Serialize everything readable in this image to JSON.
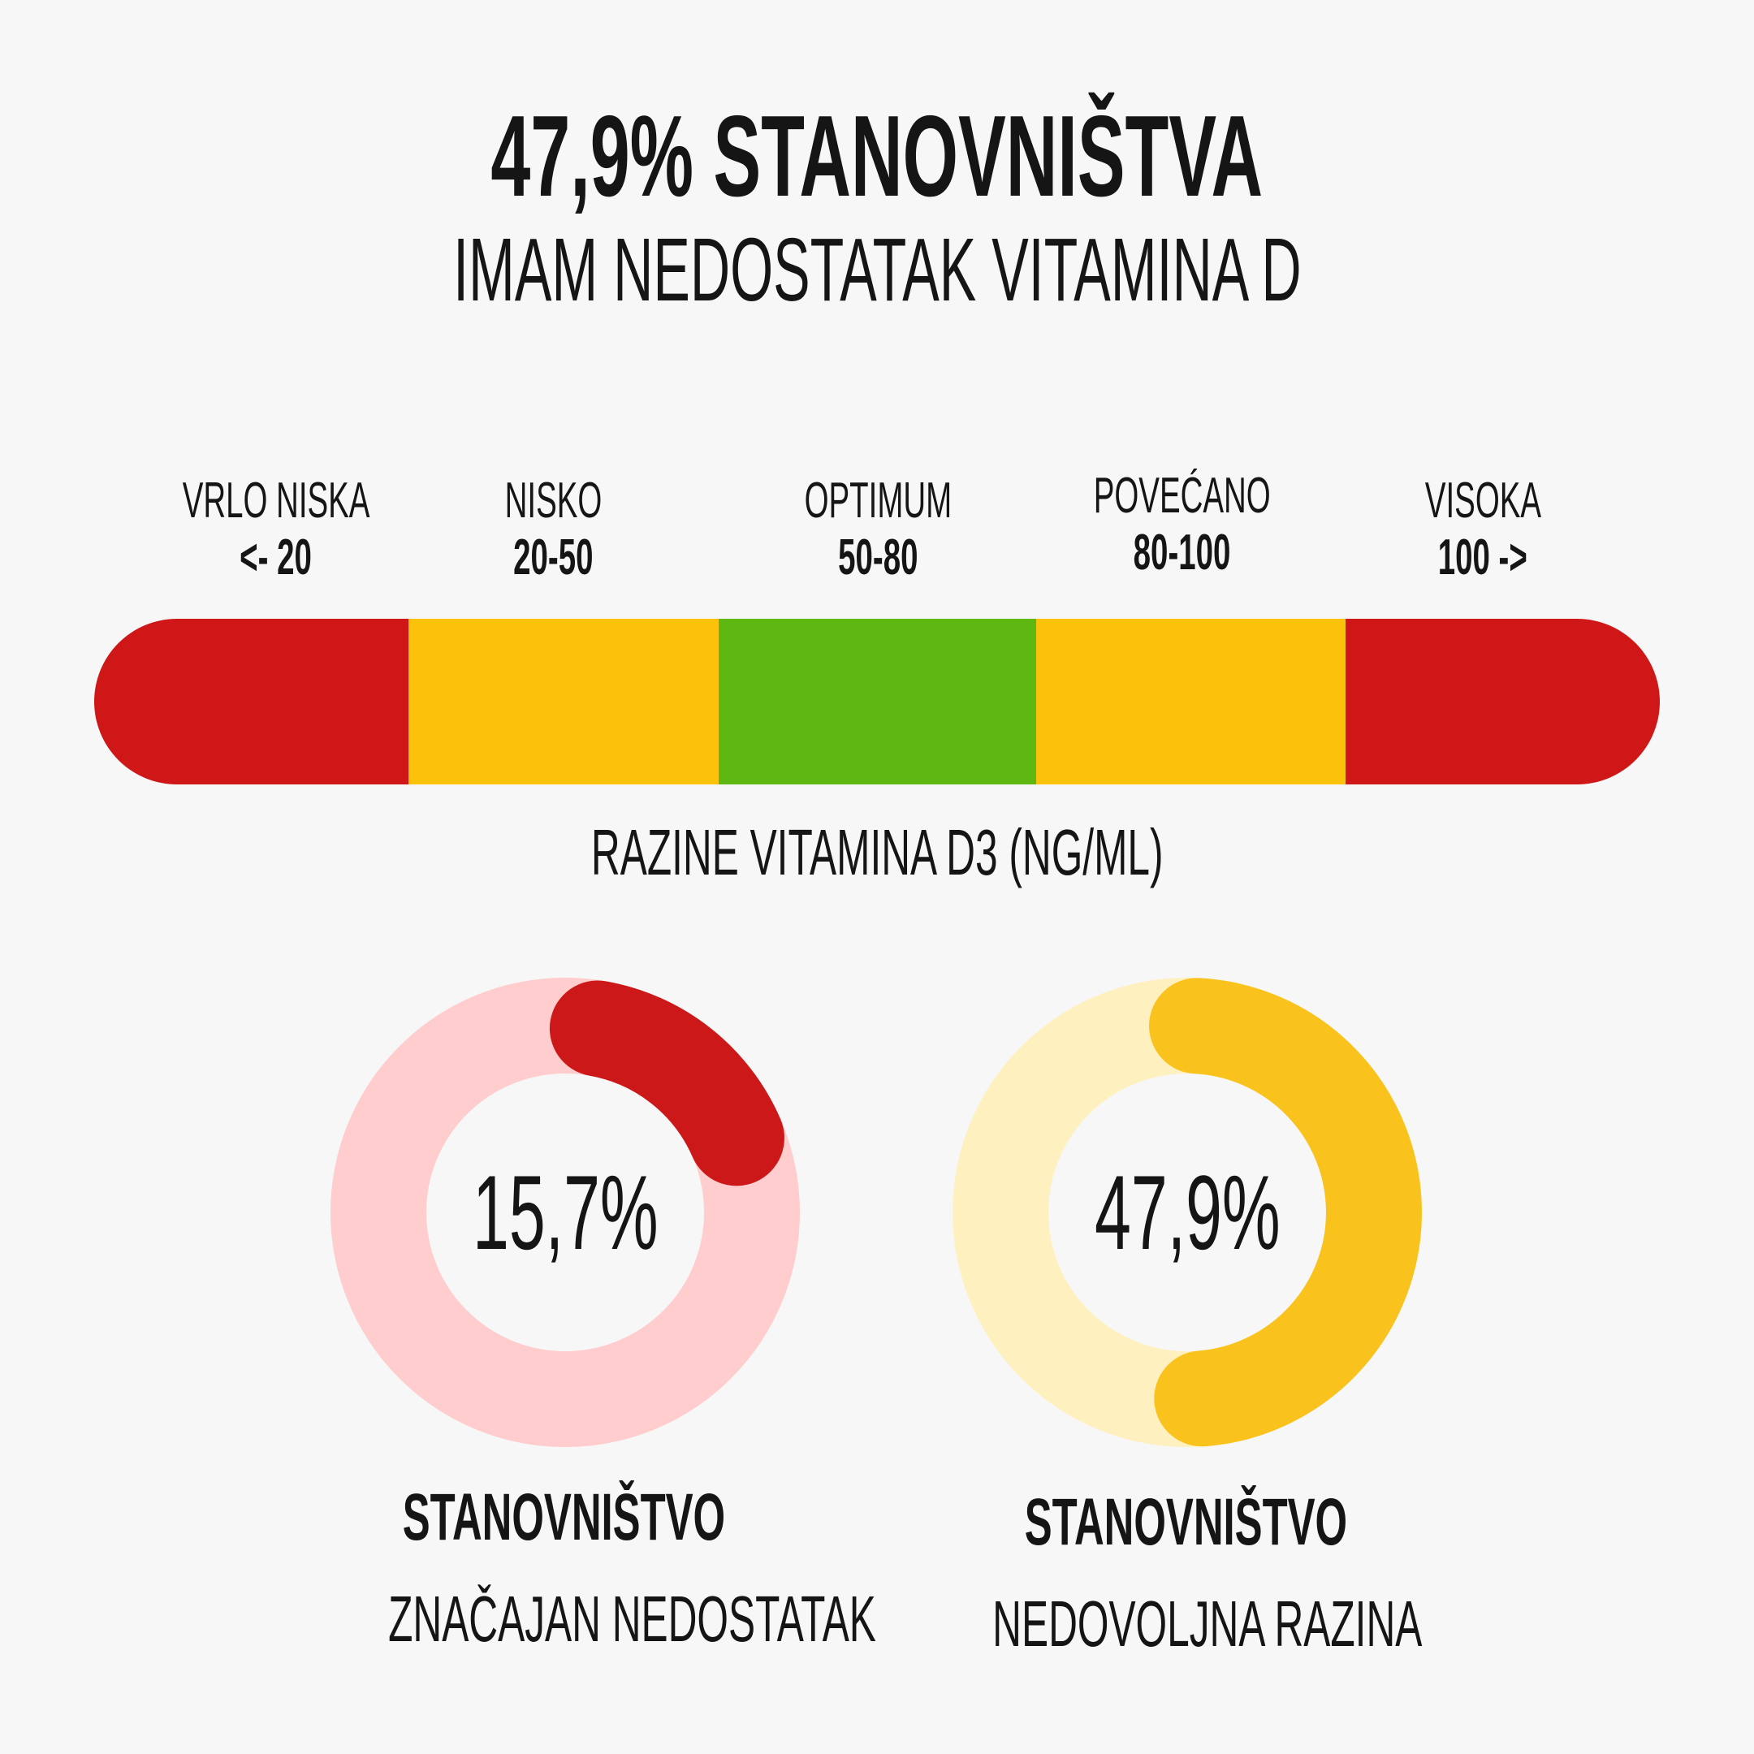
{
  "header": {
    "title": "47,9% STANOVNIŠTVA",
    "subtitle": "IMAM NEDOSTATAK VITAMINA D"
  },
  "scale": {
    "caption": "RAZINE VITAMINA D3 (NG/ML)",
    "ranges": [
      {
        "name": "VRLO NISKA",
        "value": "<- 20",
        "color": "#cf1717"
      },
      {
        "name": "NISKO",
        "value": "20-50",
        "color": "#fcc20b"
      },
      {
        "name": "OPTIMUM",
        "value": "50-80",
        "color": "#5fb711"
      },
      {
        "name": "POVEĆANO",
        "value": "80-100",
        "color": "#fcc20b"
      },
      {
        "name": "VISOKA",
        "value": "100 ->",
        "color": "#cf1717"
      }
    ]
  },
  "chart_data": {
    "type": "pie",
    "charts": [
      {
        "percent": 15.7,
        "label": "15,7%",
        "title": "STANOVNIŠTVO",
        "subtitle": "ZNAČAJAN NEDOSTATAK",
        "color": "#cc1818",
        "track_color": "#ffcdcd"
      },
      {
        "percent": 47.9,
        "label": "47,9%",
        "title": "STANOVNIŠTVO",
        "subtitle": "NEDOVOLJNA RAZINA",
        "color": "#f9c21d",
        "track_color": "#fff0c0"
      }
    ]
  }
}
